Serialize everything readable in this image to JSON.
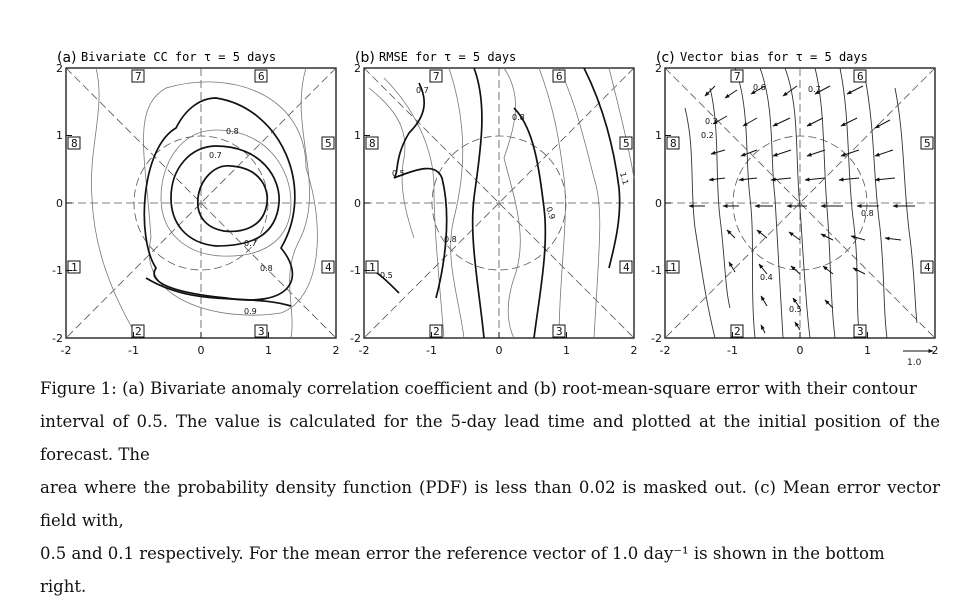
{
  "panels": [
    {
      "label": "(a)",
      "title": "Bivariate CC for τ = 5 days",
      "x_ticks": [
        "-2",
        "-1",
        "0",
        "1",
        "2"
      ],
      "y_ticks": [
        "2",
        "1",
        "0",
        "-1",
        "-2"
      ],
      "region_boxes": [
        "7",
        "6",
        "8",
        "5",
        "1",
        "4",
        "2",
        "3"
      ],
      "contour_labels": [
        "0.8",
        "0.7",
        "0.7",
        "0.8",
        "0.9"
      ]
    },
    {
      "label": "(b)",
      "title": "RMSE for τ = 5 days",
      "x_ticks": [
        "-2",
        "-1",
        "0",
        "1",
        "2"
      ],
      "y_ticks": [
        "2",
        "1",
        "0",
        "-1",
        "-2"
      ],
      "region_boxes": [
        "7",
        "6",
        "8",
        "5",
        "1",
        "4",
        "2",
        "3"
      ],
      "contour_labels": [
        "0.7",
        "0.8",
        "0.5",
        "1.1",
        "0.9",
        "0.8",
        "0.5"
      ]
    },
    {
      "label": "(c)",
      "title": "Vector bias for τ = 5 days",
      "x_ticks": [
        "-2",
        "-1",
        "0",
        "1",
        "2"
      ],
      "y_ticks": [
        "2",
        "1",
        "0",
        "-1",
        "-2"
      ],
      "region_boxes": [
        "7",
        "6",
        "8",
        "5",
        "1",
        "4",
        "2",
        "3"
      ],
      "contour_labels": [
        "0.6",
        "0.7",
        "0.3",
        "0.2",
        "0.8",
        "0.4",
        "0.5"
      ],
      "reference_vector_label": "1.0"
    }
  ],
  "caption": {
    "lines": [
      "Figure 1: (a) Bivariate anomaly correlation coefficient and (b) root-mean-square error with their contour",
      "interval of 0.5. The value is calculated for the 5-day lead time and plotted at the initial position of the forecast. The",
      "area where the probability density function (PDF) is less than 0.02 is masked out. (c) Mean error vector field with,",
      "0.5 and 0.1 respectively. For the mean error the reference vector of 1.0 day⁻¹ is shown in the bottom",
      "right."
    ]
  },
  "colors": {
    "ink": "#111111",
    "contour_thin": "#6a6a6a",
    "background": "#ffffff"
  }
}
